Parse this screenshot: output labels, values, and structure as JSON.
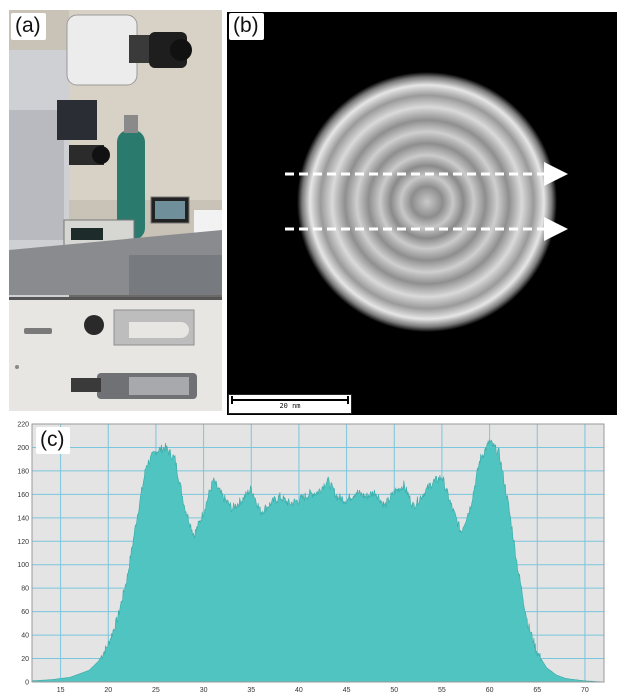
{
  "figure": {
    "panel_a": {
      "label": "(a)"
    },
    "panel_b": {
      "label": "(b)",
      "scale_bar_text": "20 nm"
    },
    "panel_c": {
      "label": "(c)"
    }
  },
  "chart_data": {
    "type": "area",
    "title": "",
    "xlabel": "",
    "ylabel": "",
    "xlim": [
      12,
      72
    ],
    "ylim": [
      0,
      220
    ],
    "x_ticks": [
      15,
      20,
      25,
      30,
      35,
      40,
      45,
      50,
      55,
      60,
      65,
      70
    ],
    "y_ticks": [
      0,
      20,
      40,
      60,
      80,
      100,
      120,
      140,
      160,
      180,
      200,
      220
    ],
    "grid": true,
    "fill_color": "#4fc4c1",
    "background_color": "#e4e4e4",
    "grid_color": "#7ac6dc",
    "series": [
      {
        "x": [
          12,
          14,
          16,
          18,
          19,
          20,
          21,
          22,
          23,
          24,
          25,
          26,
          27,
          28,
          29,
          30,
          31,
          32,
          33,
          34,
          35,
          36,
          37,
          38,
          39,
          40,
          41,
          42,
          43,
          44,
          45,
          46,
          47,
          48,
          49,
          50,
          51,
          52,
          53,
          54,
          55,
          56,
          57,
          58,
          59,
          60,
          61,
          62,
          63,
          64,
          65,
          66,
          67,
          68,
          70,
          72
        ],
        "values": [
          1,
          2,
          4,
          10,
          18,
          32,
          55,
          90,
          140,
          185,
          197,
          200,
          190,
          150,
          125,
          145,
          172,
          158,
          148,
          155,
          165,
          145,
          152,
          158,
          152,
          155,
          160,
          162,
          172,
          158,
          155,
          162,
          158,
          162,
          150,
          162,
          168,
          150,
          160,
          170,
          175,
          150,
          128,
          150,
          190,
          205,
          195,
          150,
          95,
          50,
          25,
          12,
          6,
          3,
          1,
          0
        ]
      }
    ]
  }
}
